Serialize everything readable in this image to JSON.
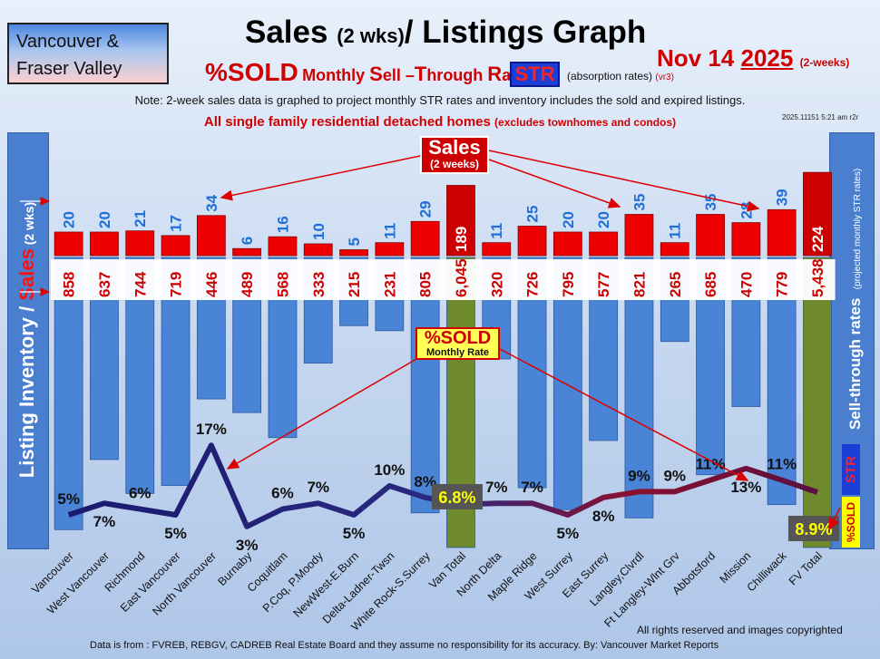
{
  "header": {
    "region_line1": "Vancouver &",
    "region_line2": "Fraser Valley",
    "title_main": "Sales",
    "title_small": "(2 wks)",
    "title_end": "/ Listings Graph",
    "subtitle_pct": "%SOLD",
    "subtitle_m1": "Monthly ",
    "subtitle_s": "S",
    "subtitle_m2": "ell –",
    "subtitle_t": "T",
    "subtitle_m3": "hrough ",
    "subtitle_r": "R",
    "subtitle_m4": "ates",
    "str_badge": "STR",
    "absorption": "(absorption rates)",
    "version": "(vr3)",
    "date_prefix": "Nov 14 ",
    "date_year": "2025",
    "date_suffix": "(2-weeks)",
    "note": "Note: 2-week sales data is graphed to project monthly STR rates and inventory includes the sold and expired listings.",
    "homes_main": "All single family residential detached homes ",
    "homes_small": "(excludes townhomes and condos)",
    "stamp": "2025.11151 5:21 am r2r"
  },
  "side": {
    "left_a": "Listing Inventory / ",
    "left_b": "Sales",
    "left_c": " (2 wks)",
    "right_a": "Sell-through rates",
    "right_b": "(projected monthly STR rates)",
    "right_str": "STR",
    "right_sold": "%SOLD"
  },
  "callouts": {
    "sales_title": "Sales",
    "sales_sub": "(2 weeks)",
    "sold_title": "%SOLD",
    "sold_sub": "Monthly Rate"
  },
  "footer": {
    "rights": "All rights reserved and  images copyrighted",
    "source": "Data is from : FVREB, REBGV, CADREB Real Estate Board and they assume no responsibility for its accuracy. By: Vancouver Market Reports"
  },
  "colors": {
    "listing_bar": "#4a84d6",
    "total_bar": "#6f8a2c",
    "sales_bar": "#ee0000",
    "sales_total_bar": "#cc0000",
    "sales_label": "#1f6fd6",
    "inventory_label": "#cc0000",
    "total_box": "#555555",
    "total_pct": "#ffff00"
  },
  "chart_data": {
    "type": "bar",
    "categories": [
      "Vancouver",
      "West Vancouver",
      "Richmond",
      "East Vancouver",
      "North Vancouver",
      "Burnaby",
      "Coquitlam",
      "P.Coq, P.Moody",
      "NewWest-E.Burn",
      "Delta-Ladner-Twsn",
      "White Rock-S.Surrey",
      "Van Total",
      "North Delta",
      "Maple Ridge",
      "West Surrey",
      "East Surrey",
      "Langley,Clvrdl",
      "Ft Langley-Wlnt Grv",
      "Abbotsford",
      "Mission",
      "Chilliwack",
      "FV Total"
    ],
    "series": [
      {
        "name": "Listing Inventory",
        "values": [
          858,
          637,
          744,
          719,
          446,
          489,
          568,
          333,
          215,
          231,
          805,
          6045,
          320,
          726,
          795,
          577,
          821,
          265,
          685,
          470,
          779,
          5438
        ]
      },
      {
        "name": "Sales",
        "values": [
          20,
          20,
          21,
          17,
          34,
          6,
          16,
          10,
          5,
          11,
          29,
          189,
          11,
          25,
          20,
          20,
          35,
          11,
          35,
          28,
          39,
          224
        ]
      },
      {
        "name": "%SOLD",
        "values": [
          5,
          7,
          6,
          5,
          17,
          3,
          6,
          7,
          5,
          10,
          8,
          6.8,
          7,
          7,
          5,
          8,
          9,
          9,
          11,
          13,
          11,
          8.9
        ]
      }
    ],
    "value_labels": {
      "inventory": [
        "858",
        "637",
        "744",
        "719",
        "446",
        "489",
        "568",
        "333",
        "215",
        "231",
        "805",
        "6,045",
        "320",
        "726",
        "795",
        "577",
        "821",
        "265",
        "685",
        "470",
        "779",
        "5,438"
      ],
      "sales": [
        "20",
        "20",
        "21",
        "17",
        "34",
        "6",
        "16",
        "10",
        "5",
        "11",
        "29",
        "189",
        "11",
        "25",
        "20",
        "20",
        "35",
        "11",
        "35",
        "28",
        "39",
        "224"
      ],
      "pct": [
        "5%",
        "7%",
        "6%",
        "5%",
        "17%",
        "3%",
        "6%",
        "7%",
        "5%",
        "10%",
        "8%",
        "6.8%",
        "7%",
        "7%",
        "5%",
        "8%",
        "9%",
        "9%",
        "11%",
        "13%",
        "11%",
        "8.9%"
      ]
    },
    "totals": [
      "Van Total",
      "FV Total"
    ],
    "title": "Sales (2 wks)/ Listings Graph"
  }
}
